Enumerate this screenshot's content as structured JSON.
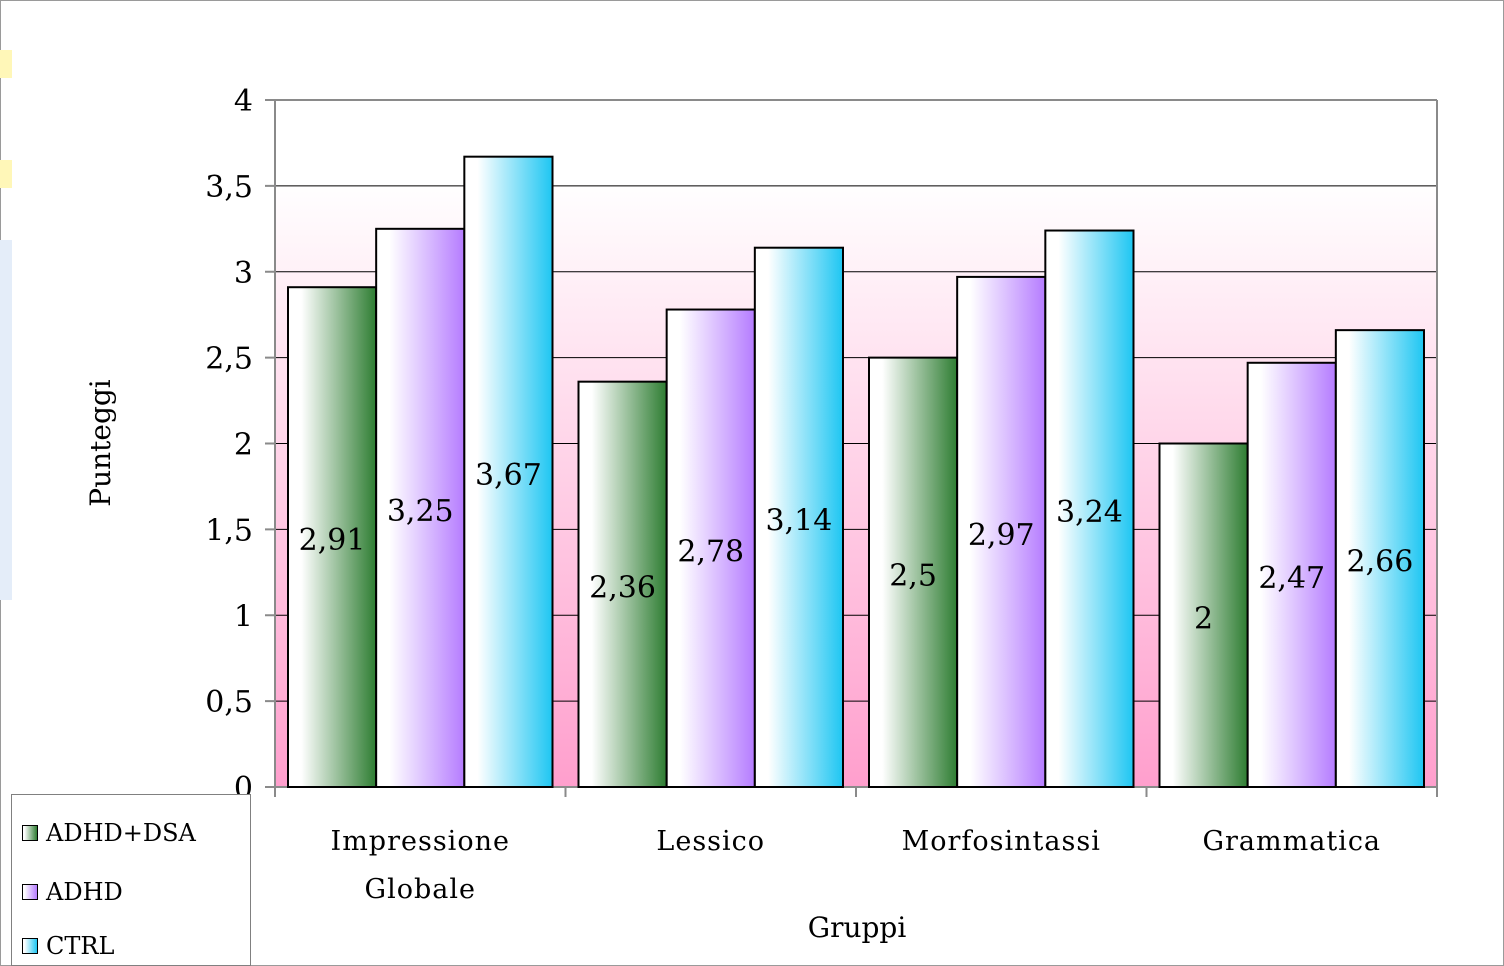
{
  "chart_data": {
    "type": "bar",
    "xlabel": "Gruppi",
    "ylabel": "Punteggi",
    "ylim": [
      0,
      4
    ],
    "yticks": [
      "0",
      "0,5",
      "1",
      "1,5",
      "2",
      "2,5",
      "3",
      "3,5",
      "4"
    ],
    "yticks_values": [
      0,
      0.5,
      1,
      1.5,
      2,
      2.5,
      3,
      3.5,
      4
    ],
    "categories": [
      [
        "Impressione",
        "Globale"
      ],
      [
        "Lessico"
      ],
      [
        "Morfosintassi"
      ],
      [
        "Grammatica"
      ]
    ],
    "series": [
      {
        "name": "ADHD+DSA",
        "values": [
          2.91,
          2.36,
          2.5,
          2.0
        ],
        "labels": [
          "2,91",
          "2,36",
          "2,5",
          "2"
        ],
        "color": "#2e7d32",
        "light": "#ffffff"
      },
      {
        "name": "ADHD",
        "values": [
          3.25,
          2.78,
          2.97,
          2.47
        ],
        "labels": [
          "3,25",
          "2,78",
          "2,97",
          "2,47"
        ],
        "color": "#b57cff",
        "light": "#ffffff"
      },
      {
        "name": "CTRL",
        "values": [
          3.67,
          3.14,
          3.24,
          2.66
        ],
        "labels": [
          "3,67",
          "3,14",
          "3,24",
          "2,66"
        ],
        "color": "#1ec6f2",
        "light": "#ffffff"
      }
    ],
    "grid": true,
    "legend_position": "bottom-left",
    "background_gradient": [
      "#ffffff",
      "#ff9fcd"
    ]
  }
}
